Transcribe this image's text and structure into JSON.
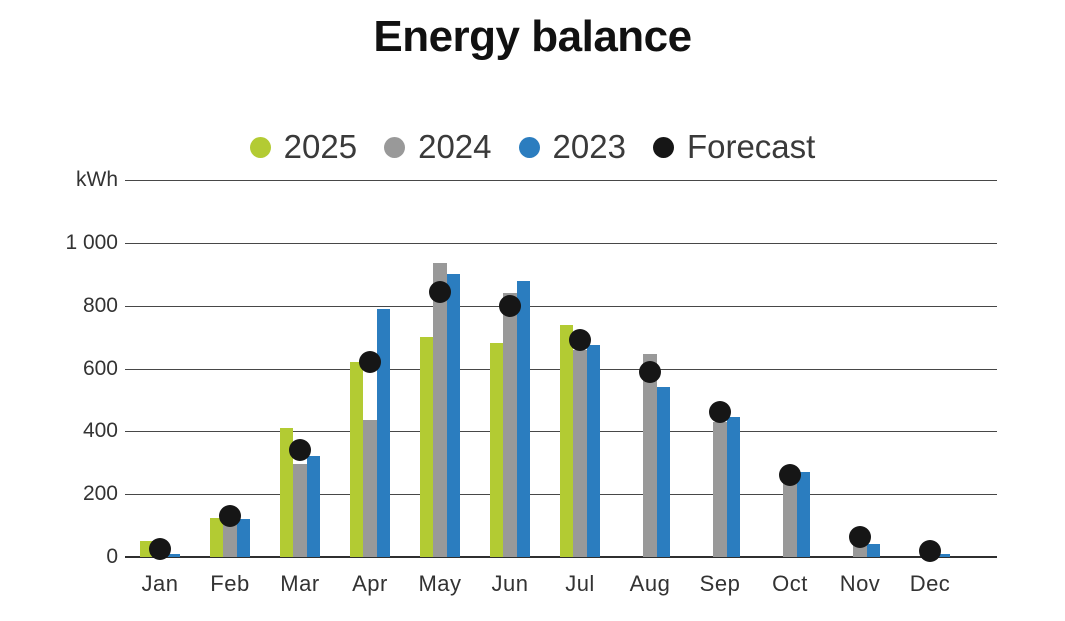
{
  "title": "Energy balance",
  "y_axis_unit": "kWh",
  "legend": [
    {
      "label": "2025",
      "color": "#b3cb33"
    },
    {
      "label": "2024",
      "color": "#999999"
    },
    {
      "label": "2023",
      "color": "#2b7dbf"
    },
    {
      "label": "Forecast",
      "color": "#161616"
    }
  ],
  "chart_data": {
    "type": "bar",
    "title": "Energy balance",
    "unit": "kWh",
    "categories": [
      "Jan",
      "Feb",
      "Mar",
      "Apr",
      "May",
      "Jun",
      "Jul",
      "Aug",
      "Sep",
      "Oct",
      "Nov",
      "Dec"
    ],
    "series": [
      {
        "name": "2025",
        "type": "bar",
        "color": "#b3cb33",
        "values": [
          50,
          125,
          410,
          620,
          700,
          680,
          740,
          null,
          null,
          null,
          null,
          null
        ]
      },
      {
        "name": "2024",
        "type": "bar",
        "color": "#999999",
        "values": [
          null,
          115,
          295,
          435,
          935,
          840,
          660,
          645,
          430,
          255,
          45,
          null
        ]
      },
      {
        "name": "2023",
        "type": "bar",
        "color": "#2b7dbf",
        "values": [
          8,
          120,
          320,
          790,
          900,
          880,
          675,
          540,
          445,
          270,
          40,
          10
        ]
      },
      {
        "name": "Forecast",
        "type": "point",
        "color": "#161616",
        "values": [
          25,
          130,
          340,
          620,
          845,
          800,
          690,
          590,
          460,
          260,
          65,
          20
        ]
      }
    ],
    "ylabel": "kWh",
    "xlabel": "",
    "ylim": [
      0,
      1200
    ],
    "ytick_step": 200,
    "ytick_labels": [
      "0",
      "200",
      "400",
      "600",
      "800",
      "1 000"
    ],
    "grid": true,
    "legend_position": "top"
  }
}
